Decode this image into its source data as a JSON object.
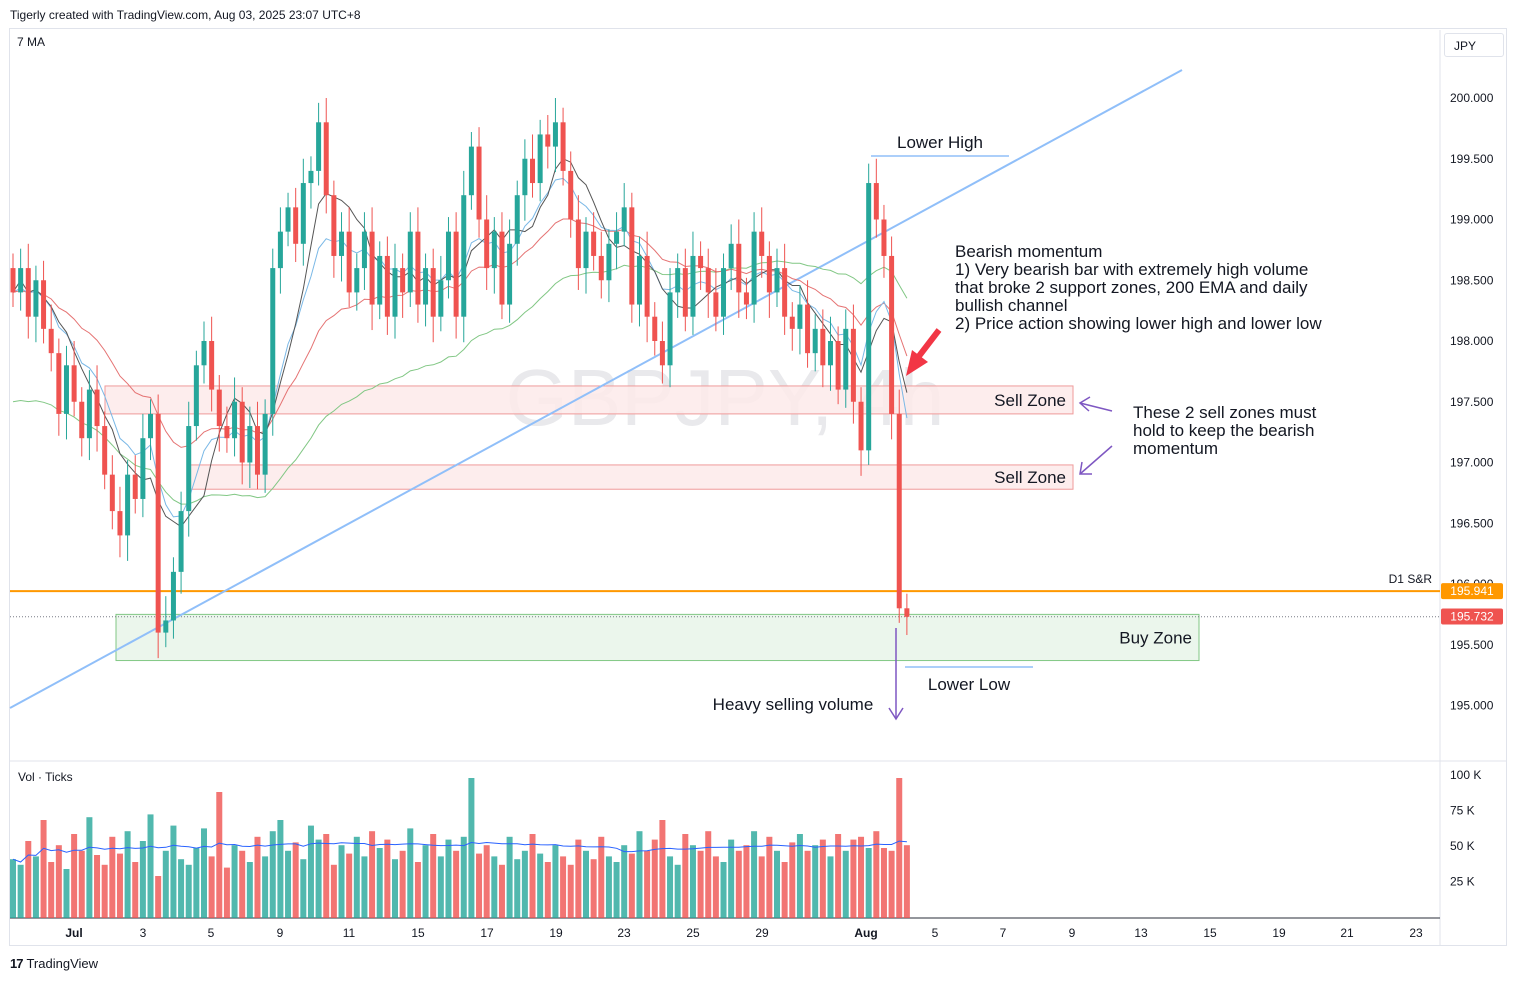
{
  "header": {
    "text": "Tigerly created with TradingView.com, Aug 03, 2025 23:07 UTC+8"
  },
  "currency": "JPY",
  "indicator_label": "7 MA",
  "volume_label": "Vol · Ticks",
  "watermark": "GBPJPY, 4h",
  "footer": {
    "brand": "TradingView",
    "logo_glyph": "17"
  },
  "colors": {
    "bull": "#26a69a",
    "bear": "#ef5350",
    "trendline": "#90bff9",
    "sr_line": "#ff9800",
    "sell_zone_fill": "#fdeaea",
    "buy_zone_fill": "#e8f5e9",
    "ma_fast": "#555555",
    "ma_blue": "#7ab8e6",
    "ma_red": "#e57373",
    "ma_green": "#81c784",
    "arrow_red": "#f23645",
    "arrow_purple": "#7e57c2"
  },
  "chart_data": {
    "type": "candlestick",
    "symbol": "GBPJPY",
    "timeframe": "4h",
    "y_ticks": [
      "200.000",
      "199.500",
      "199.000",
      "198.500",
      "198.000",
      "197.500",
      "197.000",
      "196.500",
      "196.000",
      "195.500",
      "195.000"
    ],
    "x_ticks": [
      "Jul",
      "3",
      "5",
      "9",
      "11",
      "15",
      "17",
      "19",
      "23",
      "25",
      "29",
      "Aug",
      "5",
      "7",
      "9",
      "13",
      "15",
      "19",
      "21",
      "23"
    ],
    "volume_ticks": [
      "100 K",
      "75 K",
      "50 K",
      "25 K"
    ],
    "price_labels": [
      {
        "value": "195.941",
        "color": "#ff9800"
      },
      {
        "value": "195.732",
        "color": "#ef5350"
      }
    ],
    "close_series": [
      198.4,
      198.6,
      198.2,
      198.5,
      198.1,
      197.9,
      197.4,
      197.8,
      197.5,
      197.2,
      197.6,
      197.3,
      196.9,
      196.6,
      196.4,
      196.9,
      196.7,
      197.2,
      197.4,
      195.6,
      195.7,
      196.1,
      196.6,
      197.3,
      197.8,
      198.0,
      197.6,
      197.3,
      197.2,
      197.5,
      197.0,
      197.3,
      196.9,
      197.4,
      198.6,
      198.9,
      199.1,
      198.8,
      199.3,
      199.4,
      199.8,
      199.2,
      198.7,
      198.9,
      198.4,
      198.6,
      198.9,
      198.3,
      198.7,
      198.2,
      198.6,
      198.4,
      198.9,
      198.3,
      198.6,
      198.2,
      198.5,
      198.9,
      198.2,
      199.2,
      199.6,
      199.0,
      198.6,
      198.9,
      198.3,
      198.8,
      199.2,
      199.5,
      199.3,
      199.7,
      199.6,
      199.8,
      199.4,
      199.0,
      198.6,
      198.9,
      198.7,
      198.5,
      198.8,
      198.9,
      199.1,
      198.3,
      198.7,
      198.2,
      198.0,
      197.8,
      198.4,
      198.6,
      198.2,
      198.7,
      198.6,
      198.4,
      198.2,
      198.6,
      198.8,
      198.4,
      198.3,
      198.9,
      198.7,
      198.4,
      198.6,
      198.2,
      198.1,
      198.3,
      197.9,
      198.1,
      197.8,
      198.0,
      197.6,
      198.1,
      197.5,
      197.1,
      199.3,
      199.0,
      198.7,
      197.4,
      195.8,
      195.73
    ],
    "lines": [
      {
        "name": "D1 S&R",
        "value": 195.941
      }
    ],
    "zones": [
      {
        "label": "Sell Zone",
        "from": 197.4,
        "to": 197.63
      },
      {
        "label": "Sell Zone",
        "from": 196.78,
        "to": 196.98
      },
      {
        "label": "Buy Zone",
        "from": 195.37,
        "to": 195.75
      }
    ],
    "annotations": {
      "lower_high": "Lower High",
      "lower_low": "Lower Low",
      "heavy_selling": "Heavy selling volume",
      "sell_zone_note": [
        "These 2 sell zones must",
        "hold to keep the bearish",
        "momentum"
      ],
      "bearish_note": [
        "Bearish momentum",
        "1) Very bearish bar with extremely high volume",
        "that broke 2 support zones, 200 EMA and daily",
        "bullish channel",
        "2) Price action showing lower high and lower low"
      ]
    },
    "volume": [
      42,
      38,
      55,
      44,
      70,
      40,
      52,
      35,
      60,
      48,
      72,
      45,
      38,
      58,
      46,
      62,
      40,
      55,
      74,
      30,
      48,
      66,
      42,
      38,
      50,
      64,
      44,
      90,
      36,
      52,
      48,
      40,
      58,
      44,
      62,
      70,
      48,
      54,
      42,
      66,
      56,
      60,
      38,
      52,
      46,
      58,
      44,
      62,
      50,
      56,
      42,
      48,
      64,
      40,
      52,
      60,
      44,
      56,
      48,
      58,
      100,
      46,
      52,
      44,
      38,
      58,
      42,
      48,
      60,
      46,
      40,
      52,
      44,
      38,
      56,
      48,
      42,
      58,
      44,
      40,
      52,
      46,
      62,
      48,
      56,
      70,
      44,
      38,
      60,
      52,
      48,
      62,
      44,
      40,
      56,
      48,
      52,
      62,
      44,
      58,
      48,
      40,
      54,
      60,
      48,
      52,
      56,
      44,
      60,
      48,
      56,
      58,
      50,
      62,
      50,
      48,
      100,
      52
    ]
  }
}
